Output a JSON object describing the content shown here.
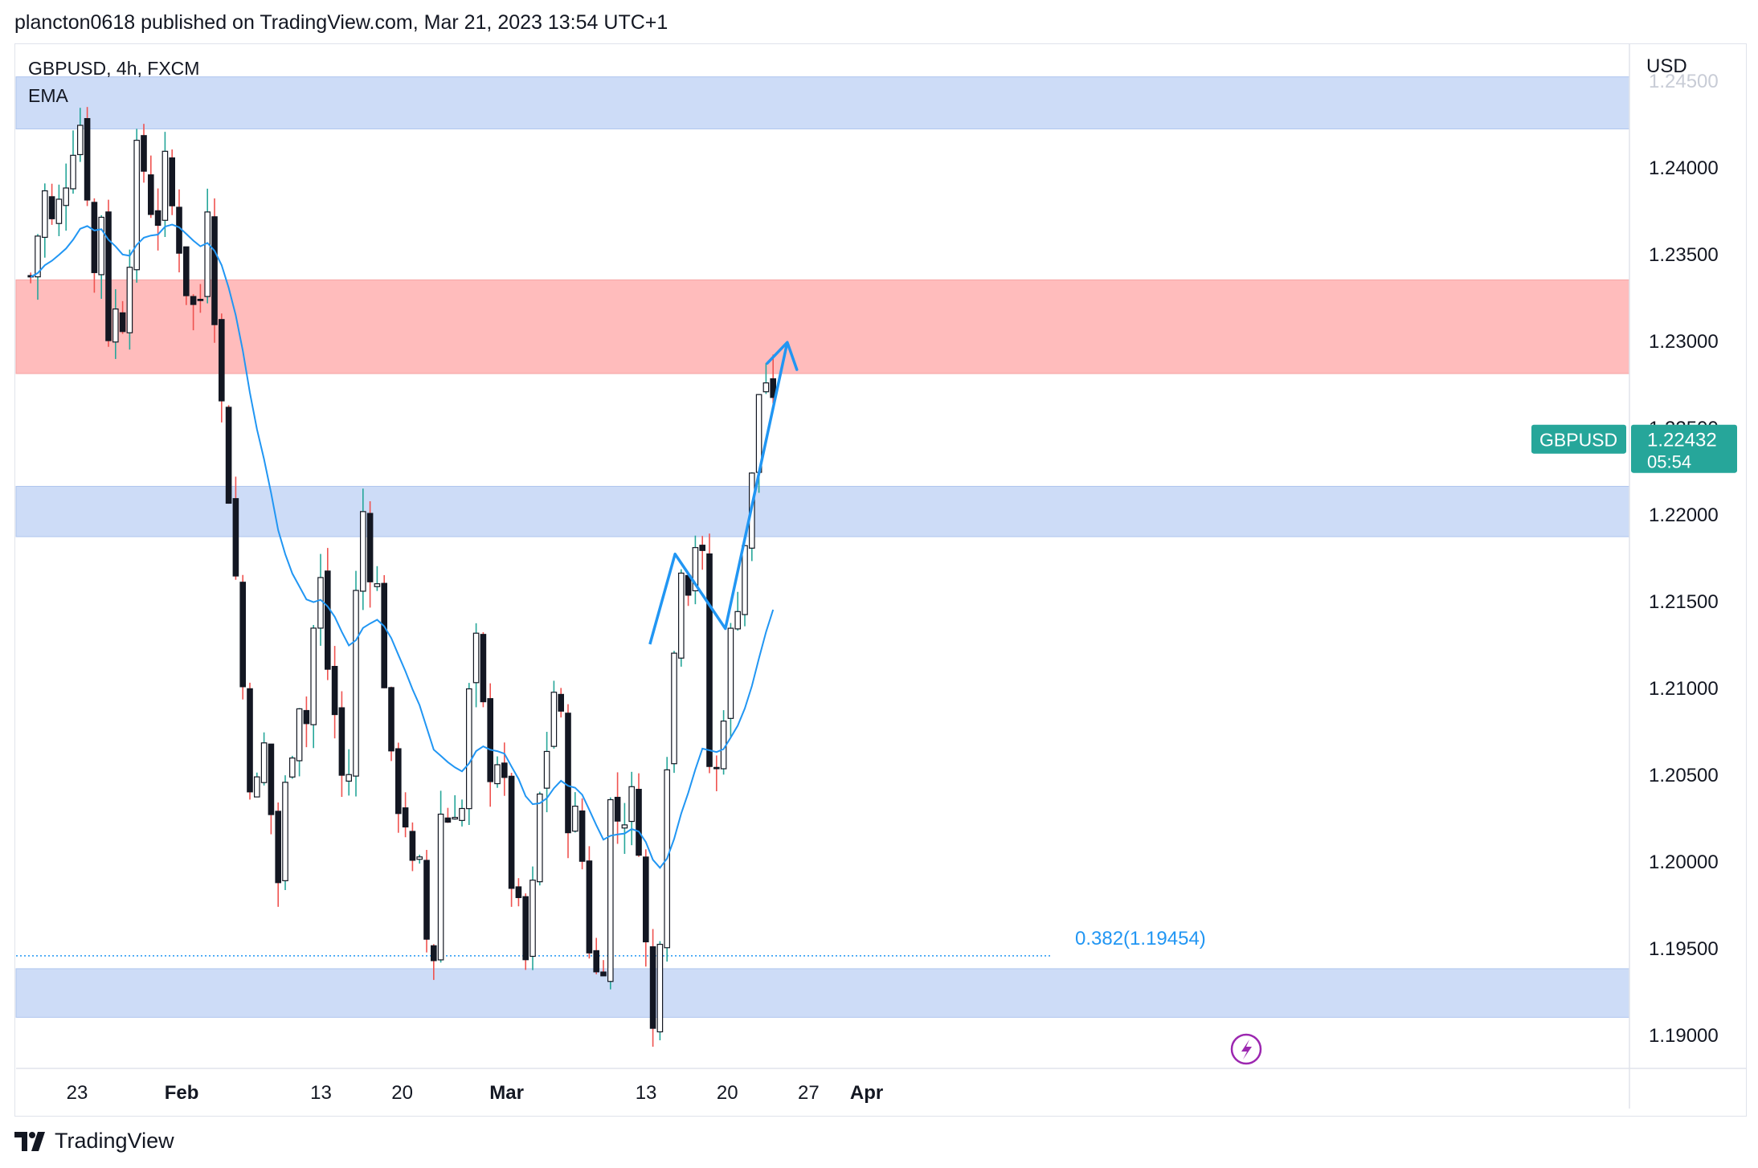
{
  "header": {
    "published": "plancton0618 published on TradingView.com, Mar 21, 2023 13:54 UTC+1"
  },
  "legend": {
    "symbol_line": "GBPUSD, 4h, FXCM",
    "indicator": "EMA"
  },
  "footer": {
    "brand": "TradingView"
  },
  "colors": {
    "up": "#26a69a",
    "down": "#ef5350",
    "candle_body": "#131722",
    "ema": "#2196f3",
    "zone_blue": "#cddcf7",
    "zone_red": "#ffbcbc",
    "price_tag": "#26a69a",
    "fib": "#2196f3",
    "lightning": "#9c27b0"
  },
  "chart_data": {
    "type": "candlestick",
    "symbol": "GBPUSD",
    "timeframe": "4h",
    "currency_label": "USD",
    "y_ticks": [
      "1.24500",
      "1.24000",
      "1.23500",
      "1.23000",
      "1.22500",
      "1.22000",
      "1.21500",
      "1.21000",
      "1.20500",
      "1.20000",
      "1.19500",
      "1.19000"
    ],
    "ylim": [
      1.188,
      1.2468
    ],
    "x_ticks": [
      {
        "label": "23",
        "date": "2023-01-23"
      },
      {
        "label": "Feb",
        "date": "2023-02-01"
      },
      {
        "label": "13",
        "date": "2023-02-13"
      },
      {
        "label": "20",
        "date": "2023-02-20"
      },
      {
        "label": "Mar",
        "date": "2023-03-01"
      },
      {
        "label": "13",
        "date": "2023-03-13"
      },
      {
        "label": "20",
        "date": "2023-03-20"
      },
      {
        "label": "27",
        "date": "2023-03-27"
      },
      {
        "label": "Apr",
        "date": "2023-04-01"
      }
    ],
    "last_price": {
      "label": "GBPUSD",
      "value": "1.22432",
      "countdown": "05:54"
    },
    "zones": [
      {
        "color": "blue",
        "from": 1.2422,
        "to": 1.2452
      },
      {
        "color": "red",
        "from": 1.2281,
        "to": 1.2335
      },
      {
        "color": "blue",
        "from": 1.2187,
        "to": 1.2216
      },
      {
        "color": "blue",
        "from": 1.191,
        "to": 1.1938
      }
    ],
    "fib_level": {
      "label": "0.382(1.19454)",
      "value": 1.19454
    },
    "projection": [
      {
        "date": "2023-03-13 08:00",
        "price": 1.2125
      },
      {
        "date": "2023-03-15 12:00",
        "price": 1.2177
      },
      {
        "date": "2023-03-19 20:00",
        "price": 1.2134
      },
      {
        "date": "2023-03-25 04:00",
        "price": 1.2299
      }
    ],
    "close_path": [
      [
        "2023-01-19 00:00",
        1.2337
      ],
      [
        "2023-01-20 04:00",
        1.2385
      ],
      [
        "2023-01-21 00:00",
        1.236
      ],
      [
        "2023-01-22 12:00",
        1.2415
      ],
      [
        "2023-01-23 04:00",
        1.2432
      ],
      [
        "2023-01-23 20:00",
        1.2395
      ],
      [
        "2023-01-24 12:00",
        1.2336
      ],
      [
        "2023-01-25 04:00",
        1.2381
      ],
      [
        "2023-01-25 20:00",
        1.229
      ],
      [
        "2023-01-26 12:00",
        1.2325
      ],
      [
        "2023-01-27 04:00",
        1.2312
      ],
      [
        "2023-01-27 20:00",
        1.2395
      ],
      [
        "2023-01-28 12:00",
        1.2408
      ],
      [
        "2023-01-29 04:00",
        1.2385
      ],
      [
        "2023-01-29 20:00",
        1.2368
      ],
      [
        "2023-01-30 12:00",
        1.2398
      ],
      [
        "2023-01-31 00:00",
        1.238
      ],
      [
        "2023-01-31 16:00",
        1.2365
      ],
      [
        "2023-02-01 08:00",
        1.2335
      ],
      [
        "2023-02-02 00:00",
        1.2318
      ],
      [
        "2023-02-02 16:00",
        1.2325
      ],
      [
        "2023-02-03 08:00",
        1.2398
      ],
      [
        "2023-02-04 00:00",
        1.23
      ],
      [
        "2023-02-04 16:00",
        1.224
      ],
      [
        "2023-02-05 08:00",
        1.22
      ],
      [
        "2023-02-06 00:00",
        1.2125
      ],
      [
        "2023-02-06 16:00",
        1.2065
      ],
      [
        "2023-02-07 08:00",
        1.203
      ],
      [
        "2023-02-08 00:00",
        1.207
      ],
      [
        "2023-02-08 16:00",
        1.203
      ],
      [
        "2023-02-09 08:00",
        1.1988
      ],
      [
        "2023-02-10 00:00",
        1.2045
      ],
      [
        "2023-02-10 16:00",
        1.208
      ],
      [
        "2023-02-11 08:00",
        1.2105
      ],
      [
        "2023-02-12 00:00",
        1.2067
      ],
      [
        "2023-02-12 16:00",
        1.219
      ],
      [
        "2023-02-13 08:00",
        1.212
      ],
      [
        "2023-02-14 00:00",
        1.2098
      ],
      [
        "2023-02-14 16:00",
        1.205
      ],
      [
        "2023-02-15 08:00",
        1.204
      ],
      [
        "2023-02-16 00:00",
        1.215
      ],
      [
        "2023-02-16 16:00",
        1.2205
      ],
      [
        "2023-02-17 08:00",
        1.217
      ],
      [
        "2023-02-18 00:00",
        1.215
      ],
      [
        "2023-02-18 16:00",
        1.209
      ],
      [
        "2023-02-19 08:00",
        1.202
      ],
      [
        "2023-02-20 00:00",
        1.2055
      ],
      [
        "2023-02-20 16:00",
        1.1985
      ],
      [
        "2023-02-21 08:00",
        1.2
      ],
      [
        "2023-02-22 00:00",
        1.1958
      ],
      [
        "2023-02-22 16:00",
        1.1942
      ],
      [
        "2023-02-23 08:00",
        1.203
      ],
      [
        "2023-02-24 00:00",
        1.2025
      ],
      [
        "2023-02-24 16:00",
        1.204
      ],
      [
        "2023-02-25 08:00",
        1.2025
      ],
      [
        "2023-02-26 00:00",
        1.213
      ],
      [
        "2023-02-26 16:00",
        1.211
      ],
      [
        "2023-02-27 08:00",
        1.205
      ],
      [
        "2023-02-28 00:00",
        1.207
      ],
      [
        "2023-02-28 16:00",
        1.2045
      ],
      [
        "2023-03-01 08:00",
        1.1995
      ],
      [
        "2023-03-02 00:00",
        1.1965
      ],
      [
        "2023-03-02 16:00",
        1.194
      ],
      [
        "2023-03-03 08:00",
        1.1985
      ],
      [
        "2023-03-04 00:00",
        1.205
      ],
      [
        "2023-03-04 16:00",
        1.2075
      ],
      [
        "2023-03-05 08:00",
        1.2115
      ],
      [
        "2023-03-06 00:00",
        1.2035
      ],
      [
        "2023-03-06 16:00",
        1.2025
      ],
      [
        "2023-03-07 08:00",
        1.2015
      ],
      [
        "2023-03-08 00:00",
        1.196
      ],
      [
        "2023-03-08 16:00",
        1.1932
      ],
      [
        "2023-03-09 08:00",
        1.195
      ],
      [
        "2023-03-10 00:00",
        1.204
      ],
      [
        "2023-03-10 16:00",
        1.2022
      ],
      [
        "2023-03-11 08:00",
        1.2035
      ],
      [
        "2023-03-12 00:00",
        1.203
      ],
      [
        "2023-03-12 16:00",
        1.201
      ],
      [
        "2023-03-13 08:00",
        1.1882
      ],
      [
        "2023-03-14 00:00",
        1.193
      ],
      [
        "2023-03-14 16:00",
        1.2055
      ],
      [
        "2023-03-15 08:00",
        1.211
      ],
      [
        "2023-03-16 00:00",
        1.218
      ],
      [
        "2023-03-16 16:00",
        1.2165
      ],
      [
        "2023-03-17 08:00",
        1.219
      ],
      [
        "2023-03-18 00:00",
        1.216
      ],
      [
        "2023-03-18 16:00",
        1.201
      ],
      [
        "2023-03-19 08:00",
        1.2075
      ],
      [
        "2023-03-20 00:00",
        1.211
      ],
      [
        "2023-03-20 16:00",
        1.2145
      ],
      [
        "2023-03-21 08:00",
        1.2178
      ],
      [
        "2023-03-22 00:00",
        1.2205
      ],
      [
        "2023-03-22 16:00",
        1.227
      ],
      [
        "2023-03-23 08:00",
        1.2278
      ],
      [
        "2023-03-24 00:00",
        1.225
      ],
      [
        "2023-03-24 12:00",
        1.2243
      ]
    ]
  }
}
